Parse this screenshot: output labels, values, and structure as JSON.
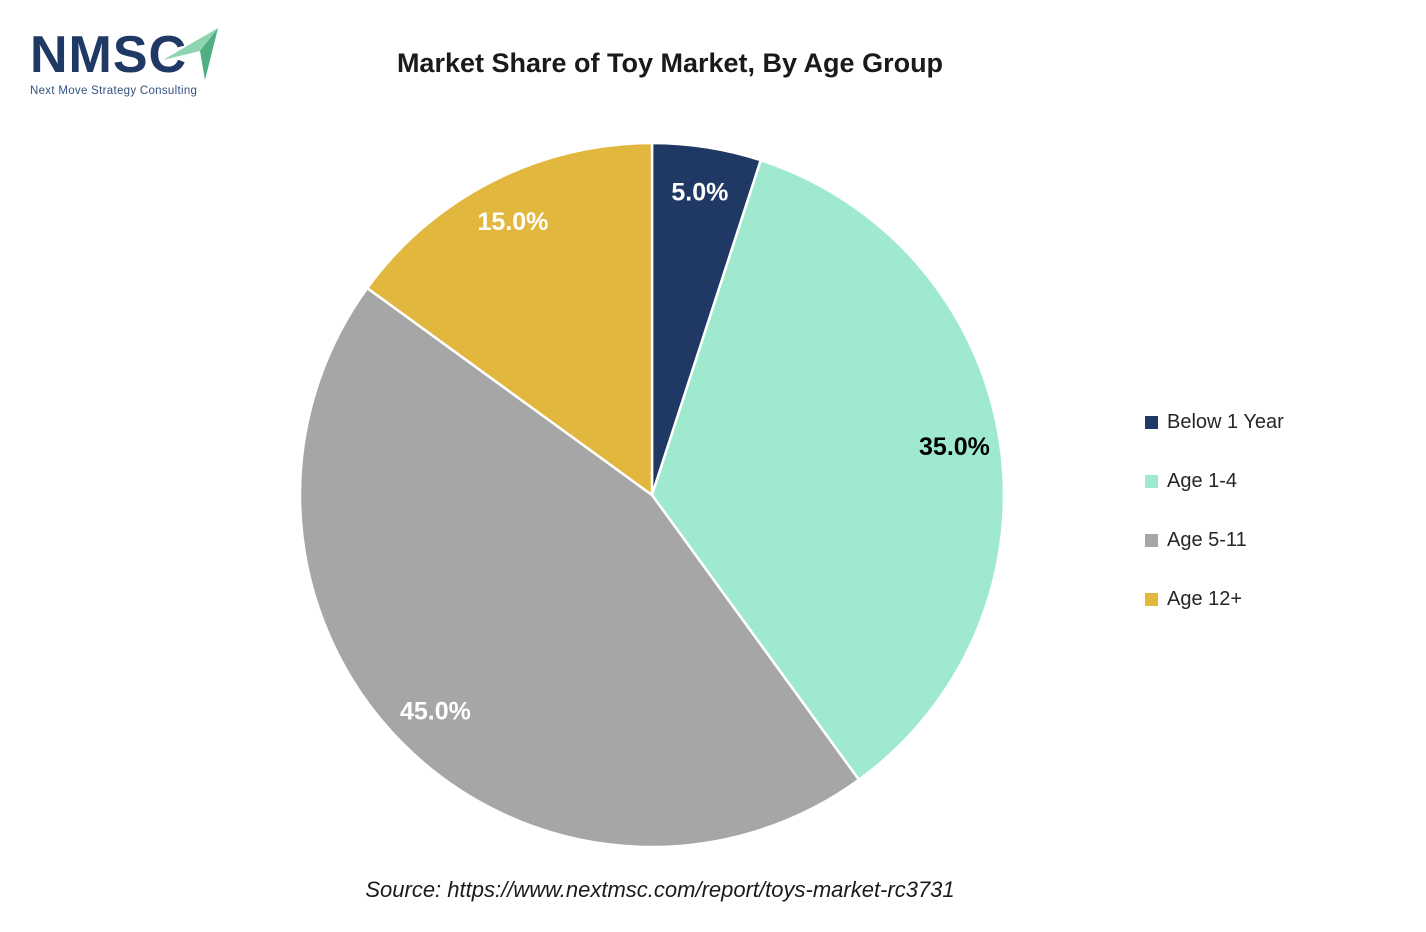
{
  "logo": {
    "text": "NMSC",
    "subtext": "Next Move Strategy Consulting",
    "text_color": "#1F3864",
    "arrow_light_color": "#8FD4B0",
    "arrow_dark_color": "#4FAE82"
  },
  "title": "Market Share of Toy Market, By Age Group",
  "source": "Source: https://www.nextmsc.com/report/toys-market-rc3731",
  "chart_data": {
    "type": "pie",
    "title": "Market Share of Toy Market, By Age Group",
    "start_angle_deg": 0,
    "direction": "clockwise",
    "legend_position": "right",
    "separator_color": "#ffffff",
    "slices": [
      {
        "label": "Below 1 Year",
        "value": 5.0,
        "display": "5.0%",
        "color": "#1F3864",
        "label_color": "#ffffff"
      },
      {
        "label": "Age 1-4",
        "value": 35.0,
        "display": "35.0%",
        "color": "#9FEACF",
        "label_color": "#000000"
      },
      {
        "label": "Age 5-11",
        "value": 45.0,
        "display": "45.0%",
        "color": "#A6A6A6",
        "label_color": "#ffffff"
      },
      {
        "label": "Age 12+",
        "value": 15.0,
        "display": "15.0%",
        "color": "#E1B73D",
        "label_color": "#ffffff"
      }
    ]
  }
}
